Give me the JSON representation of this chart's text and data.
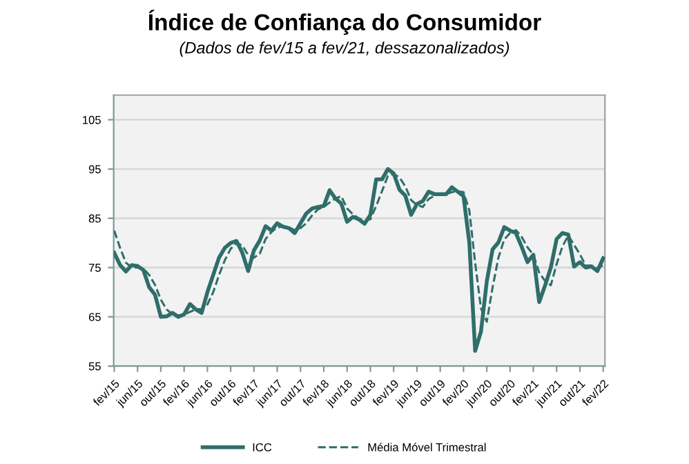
{
  "chart_data": {
    "type": "line",
    "title": "Índice de Confiança do Consumidor",
    "subtitle": "(Dados de fev/15 a fev/21, dessazonalizados)",
    "categories": [
      "fev/15",
      null,
      null,
      null,
      "jun/15",
      null,
      null,
      null,
      "out/15",
      null,
      null,
      null,
      "fev/16",
      null,
      null,
      null,
      "jun/16",
      null,
      null,
      null,
      "out/16",
      null,
      null,
      null,
      "fev/17",
      null,
      null,
      null,
      "jun/17",
      null,
      null,
      null,
      "out/17",
      null,
      null,
      null,
      "fev/18",
      null,
      null,
      null,
      "jun/18",
      null,
      null,
      null,
      "out/18",
      null,
      null,
      null,
      "fev/19",
      null,
      null,
      null,
      "jun/19",
      null,
      null,
      null,
      "out/19",
      null,
      null,
      null,
      "fev/20",
      null,
      null,
      null,
      "jun/20",
      null,
      null,
      null,
      "out/20",
      null,
      null,
      null,
      "fev/21",
      null,
      null,
      null,
      "jun/21",
      null,
      null,
      null,
      "out/21",
      null,
      null,
      null,
      "fev/22"
    ],
    "series": [
      {
        "name": "ICC",
        "color": "#2f6e6a",
        "line_style": "solid",
        "values": [
          78,
          75.5,
          74.2,
          75.5,
          75.3,
          74.5,
          71,
          69.5,
          65,
          65.1,
          65.8,
          65,
          65.5,
          67.6,
          66.5,
          65.8,
          70,
          73.5,
          77,
          79,
          80,
          80.4,
          78,
          74.3,
          78.5,
          80.5,
          83.4,
          82.5,
          84,
          83.3,
          83,
          82,
          84,
          86,
          87,
          87.3,
          87.5,
          90.7,
          89,
          88,
          84.3,
          85.3,
          84.8,
          83.9,
          85.7,
          92.9,
          92.9,
          95,
          94.1,
          90.8,
          89.6,
          85.7,
          87.9,
          88.5,
          90.4,
          89.9,
          89.9,
          89.9,
          91.3,
          90.4,
          89.5,
          80.1,
          58.1,
          62,
          72.2,
          78.7,
          80.1,
          83.2,
          82.5,
          82,
          79.2,
          76.1,
          77.6,
          68,
          71.3,
          75,
          80.8,
          82,
          81.7,
          75.2,
          76.1,
          75,
          75.2,
          74.3,
          76.9
        ]
      },
      {
        "name": "Média Móvel Trimestral",
        "color": "#2f6e6a",
        "line_style": "dashed",
        "values": [
          82.5,
          79,
          76,
          75,
          75,
          74.8,
          73.5,
          71.5,
          68.5,
          66.5,
          65.5,
          65.3,
          65.4,
          66,
          66.5,
          66.6,
          67.5,
          70,
          73.5,
          76.5,
          78.8,
          80,
          79.5,
          77.5,
          77,
          77.8,
          80.8,
          82.2,
          83.2,
          83.3,
          83.2,
          82.6,
          83,
          84,
          85.6,
          86.8,
          87.3,
          88.2,
          89,
          89.5,
          87,
          85.8,
          85,
          84.5,
          84.8,
          87.5,
          90.5,
          93.6,
          94,
          93.3,
          91.5,
          88.7,
          87.7,
          87.3,
          88.9,
          89.6,
          90,
          89.9,
          90.3,
          90.5,
          90.3,
          86.6,
          76,
          66.7,
          64,
          71,
          77,
          80.7,
          82,
          82.6,
          81.2,
          79.1,
          77.6,
          74,
          72.3,
          71.4,
          75.7,
          79.3,
          81.5,
          79.6,
          77.7,
          75.4,
          75.4,
          74.8,
          75.5
        ]
      }
    ],
    "ylim": [
      55,
      110
    ],
    "yticks": [
      55,
      65,
      75,
      85,
      95,
      105
    ],
    "grid": "y",
    "legend": "bottom",
    "marker": "none"
  }
}
